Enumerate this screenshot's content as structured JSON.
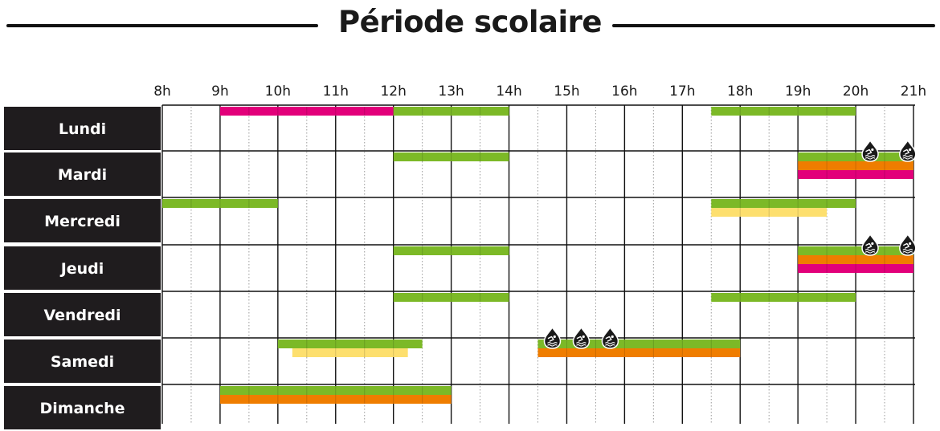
{
  "title": "Période scolaire",
  "colors": {
    "green": "#7cb927",
    "orange": "#ef7d00",
    "pink": "#e2007a",
    "yellow": "#fddf6e",
    "label_bg": "#1f1c1e",
    "grid": "#111111",
    "half_hour_grid": "#9a9a9a"
  },
  "chart_data": {
    "type": "timeline",
    "title": "Période scolaire",
    "hours": [
      "8h",
      "9h",
      "10h",
      "11h",
      "12h",
      "13h",
      "14h",
      "15h",
      "16h",
      "17h",
      "18h",
      "19h",
      "20h",
      "21h"
    ],
    "hour_range": [
      8,
      21
    ],
    "days": [
      "Lundi",
      "Mardi",
      "Mercredi",
      "Jeudi",
      "Vendredi",
      "Samedi",
      "Dimanche"
    ],
    "icon": "swimmer-drop-icon",
    "bars": [
      {
        "day": "Lundi",
        "start": 9,
        "end": 12,
        "color": "pink",
        "lane": 0
      },
      {
        "day": "Lundi",
        "start": 12,
        "end": 14,
        "color": "green",
        "lane": 0
      },
      {
        "day": "Lundi",
        "start": 17.5,
        "end": 20,
        "color": "green",
        "lane": 0
      },
      {
        "day": "Mardi",
        "start": 12,
        "end": 14,
        "color": "green",
        "lane": 0
      },
      {
        "day": "Mardi",
        "start": 19,
        "end": 21,
        "color": "green",
        "lane": 0
      },
      {
        "day": "Mardi",
        "start": 19,
        "end": 21,
        "color": "orange",
        "lane": 1
      },
      {
        "day": "Mardi",
        "start": 19,
        "end": 21,
        "color": "pink",
        "lane": 2
      },
      {
        "day": "Mercredi",
        "start": 8,
        "end": 10,
        "color": "green",
        "lane": 0
      },
      {
        "day": "Mercredi",
        "start": 17.5,
        "end": 20,
        "color": "green",
        "lane": 0
      },
      {
        "day": "Mercredi",
        "start": 17.5,
        "end": 19.5,
        "color": "yellow",
        "lane": 1
      },
      {
        "day": "Jeudi",
        "start": 12,
        "end": 14,
        "color": "green",
        "lane": 0
      },
      {
        "day": "Jeudi",
        "start": 19,
        "end": 21,
        "color": "green",
        "lane": 0
      },
      {
        "day": "Jeudi",
        "start": 19,
        "end": 21,
        "color": "orange",
        "lane": 1
      },
      {
        "day": "Jeudi",
        "start": 19,
        "end": 21,
        "color": "pink",
        "lane": 2
      },
      {
        "day": "Vendredi",
        "start": 12,
        "end": 14,
        "color": "green",
        "lane": 0
      },
      {
        "day": "Vendredi",
        "start": 17.5,
        "end": 20,
        "color": "green",
        "lane": 0
      },
      {
        "day": "Samedi",
        "start": 10,
        "end": 12.5,
        "color": "green",
        "lane": 0
      },
      {
        "day": "Samedi",
        "start": 10.25,
        "end": 12.25,
        "color": "yellow",
        "lane": 1
      },
      {
        "day": "Samedi",
        "start": 14.5,
        "end": 18,
        "color": "green",
        "lane": 0
      },
      {
        "day": "Samedi",
        "start": 14.5,
        "end": 18,
        "color": "orange",
        "lane": 1
      },
      {
        "day": "Dimanche",
        "start": 9,
        "end": 13,
        "color": "green",
        "lane": 0
      },
      {
        "day": "Dimanche",
        "start": 9,
        "end": 13,
        "color": "orange",
        "lane": 1
      }
    ],
    "icons": [
      {
        "day": "Mardi",
        "hour": 20.25
      },
      {
        "day": "Mardi",
        "hour": 20.9
      },
      {
        "day": "Jeudi",
        "hour": 20.25
      },
      {
        "day": "Jeudi",
        "hour": 20.9
      },
      {
        "day": "Samedi",
        "hour": 14.75
      },
      {
        "day": "Samedi",
        "hour": 15.25
      },
      {
        "day": "Samedi",
        "hour": 15.75
      }
    ]
  }
}
